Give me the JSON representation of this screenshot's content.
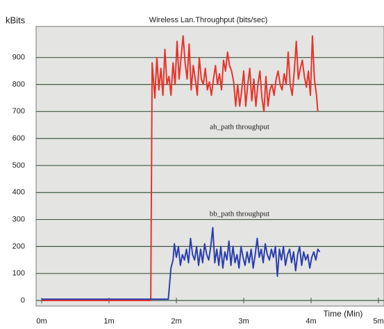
{
  "chart_data": {
    "type": "line",
    "title": "Wireless Lan.Throughput (bits/sec)",
    "y_label": "kBits",
    "x_label": "Time (Min)",
    "xlim": [
      0,
      5
    ],
    "ylim": [
      0,
      1010
    ],
    "xticks": [
      {
        "value": 0,
        "label": "0m"
      },
      {
        "value": 1,
        "label": "1m"
      },
      {
        "value": 2,
        "label": "2m"
      },
      {
        "value": 3,
        "label": "3m"
      },
      {
        "value": 4,
        "label": "4m"
      },
      {
        "value": 5,
        "label": "5m"
      }
    ],
    "yticks": [
      0,
      100,
      200,
      300,
      400,
      500,
      600,
      700,
      800,
      900
    ],
    "grid": true,
    "series": [
      {
        "name": "ah_path throughput",
        "color": "#e8332a",
        "x": [
          0,
          1.62,
          1.64,
          1.68,
          1.71,
          1.74,
          1.77,
          1.8,
          1.83,
          1.86,
          1.89,
          1.92,
          1.95,
          1.98,
          2.01,
          2.04,
          2.07,
          2.1,
          2.13,
          2.16,
          2.19,
          2.22,
          2.25,
          2.28,
          2.31,
          2.34,
          2.37,
          2.4,
          2.43,
          2.46,
          2.49,
          2.52,
          2.55,
          2.58,
          2.61,
          2.64,
          2.67,
          2.7,
          2.73,
          2.76,
          2.79,
          2.82,
          2.85,
          2.88,
          2.91,
          2.94,
          2.97,
          3.0,
          3.03,
          3.06,
          3.09,
          3.12,
          3.15,
          3.18,
          3.21,
          3.24,
          3.27,
          3.3,
          3.33,
          3.36,
          3.39,
          3.42,
          3.45,
          3.48,
          3.51,
          3.54,
          3.57,
          3.6,
          3.63,
          3.66,
          3.69,
          3.72,
          3.75,
          3.78,
          3.81,
          3.84,
          3.87,
          3.9,
          3.93,
          3.96,
          3.99,
          4.02,
          4.05,
          4.08,
          4.1
        ],
        "values": [
          0,
          0,
          880,
          750,
          900,
          780,
          860,
          760,
          930,
          800,
          830,
          760,
          880,
          800,
          960,
          820,
          900,
          980,
          880,
          820,
          950,
          780,
          870,
          820,
          760,
          900,
          820,
          800,
          860,
          780,
          810,
          760,
          820,
          870,
          800,
          840,
          780,
          890,
          850,
          920,
          870,
          850,
          810,
          720,
          800,
          720,
          780,
          850,
          720,
          800,
          860,
          740,
          820,
          720,
          800,
          850,
          750,
          700,
          830,
          720,
          780,
          800,
          760,
          820,
          850,
          800,
          780,
          840,
          800,
          920,
          800,
          760,
          850,
          960,
          820,
          860,
          890,
          830,
          790,
          850,
          760,
          980,
          820,
          760,
          700
        ]
      },
      {
        "name": "bb_path throughput",
        "color": "#2b3fae",
        "x": [
          0,
          0.5,
          1.0,
          1.5,
          1.88,
          1.92,
          1.95,
          1.97,
          2.0,
          2.03,
          2.06,
          2.09,
          2.12,
          2.15,
          2.18,
          2.21,
          2.24,
          2.27,
          2.3,
          2.33,
          2.36,
          2.39,
          2.42,
          2.45,
          2.48,
          2.51,
          2.54,
          2.57,
          2.6,
          2.63,
          2.66,
          2.69,
          2.72,
          2.75,
          2.78,
          2.81,
          2.84,
          2.87,
          2.9,
          2.93,
          2.96,
          2.99,
          3.02,
          3.05,
          3.08,
          3.11,
          3.14,
          3.17,
          3.2,
          3.23,
          3.26,
          3.29,
          3.32,
          3.35,
          3.38,
          3.41,
          3.44,
          3.47,
          3.5,
          3.53,
          3.56,
          3.59,
          3.62,
          3.65,
          3.68,
          3.71,
          3.74,
          3.77,
          3.8,
          3.83,
          3.86,
          3.89,
          3.92,
          3.95,
          3.98,
          4.01,
          4.04,
          4.07,
          4.1,
          4.13
        ],
        "values": [
          5,
          5,
          5,
          5,
          5,
          120,
          150,
          210,
          160,
          200,
          130,
          170,
          150,
          190,
          140,
          230,
          170,
          150,
          200,
          130,
          190,
          140,
          210,
          170,
          150,
          200,
          270,
          140,
          190,
          130,
          200,
          120,
          180,
          150,
          220,
          130,
          200,
          140,
          170,
          120,
          200,
          160,
          130,
          180,
          140,
          190,
          120,
          170,
          230,
          160,
          190,
          140,
          210,
          170,
          150,
          190,
          160,
          200,
          90,
          190,
          150,
          200,
          130,
          170,
          190,
          140,
          180,
          110,
          170,
          200,
          130,
          180,
          150,
          170,
          120,
          160,
          180,
          150,
          190,
          180
        ]
      }
    ]
  }
}
